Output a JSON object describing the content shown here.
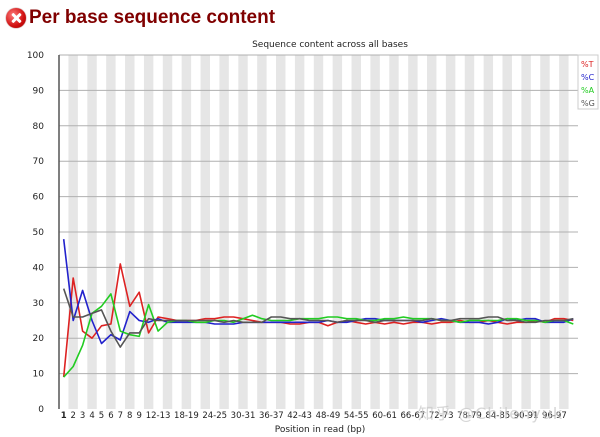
{
  "header": {
    "title": "Per base sequence content",
    "status_icon": "error-icon"
  },
  "watermark": "知乎 @Chilenyuk",
  "chart_data": {
    "type": "line",
    "title": "Sequence content across all bases",
    "xlabel": "Position in read (bp)",
    "ylabel": "",
    "ylim": [
      0,
      100
    ],
    "yticks": [
      0,
      10,
      20,
      30,
      40,
      50,
      60,
      70,
      80,
      90,
      100
    ],
    "grid": true,
    "legend_position": "top-right",
    "categories": [
      "1",
      "2",
      "3",
      "4",
      "5",
      "6",
      "7",
      "8",
      "9",
      "10-11",
      "12-13",
      "14-15",
      "16-17",
      "18-19",
      "20-21",
      "22-23",
      "24-25",
      "26-27",
      "28-29",
      "30-31",
      "32-33",
      "34-35",
      "36-37",
      "38-39",
      "40-41",
      "42-43",
      "44-45",
      "46-47",
      "48-49",
      "50-51",
      "52-53",
      "54-55",
      "56-57",
      "58-59",
      "60-61",
      "62-63",
      "64-65",
      "66-67",
      "68-69",
      "70-71",
      "72-73",
      "74-75",
      "76-77",
      "78-79",
      "80-81",
      "82-83",
      "84-85",
      "86-87",
      "88-89",
      "90-91",
      "92-93",
      "94-95",
      "96-97",
      "98-99",
      "100-101"
    ],
    "x_tick_labels": [
      "1",
      "2",
      "3",
      "4",
      "5",
      "6",
      "7",
      "8",
      "9",
      "12-13",
      "18-19",
      "24-25",
      "30-31",
      "36-37",
      "42-43",
      "48-49",
      "54-55",
      "60-61",
      "66-67",
      "72-73",
      "78-79",
      "84-85",
      "90-91",
      "96-97"
    ],
    "series": [
      {
        "name": "%T",
        "color": "#dd2222",
        "values": [
          9,
          37,
          22,
          20,
          23.5,
          24,
          41,
          29,
          33,
          21.5,
          26,
          25.5,
          25,
          25,
          25,
          25.5,
          25.5,
          26,
          26,
          25.5,
          25,
          24.5,
          24.5,
          24.5,
          24,
          24,
          24.5,
          24.5,
          23.5,
          24.5,
          25,
          24.5,
          24,
          24.5,
          24,
          24.5,
          24,
          24.5,
          24.5,
          24,
          24.5,
          24.5,
          25,
          24.5,
          24.5,
          25,
          24.5,
          24,
          24.5,
          24.5,
          25,
          24.5,
          25.5,
          25.5,
          25
        ]
      },
      {
        "name": "%C",
        "color": "#2222cc",
        "values": [
          48,
          25,
          33.5,
          25,
          18.5,
          21,
          19.5,
          27.5,
          25,
          24.5,
          25.5,
          24.5,
          24.5,
          24.5,
          24.5,
          24.5,
          24,
          24,
          24,
          24.5,
          24.5,
          24.5,
          24.5,
          24.5,
          24.5,
          24.5,
          24.5,
          24.5,
          25,
          24.5,
          24.5,
          25,
          25.5,
          25.5,
          25,
          25,
          25,
          25,
          24.5,
          25,
          25.5,
          25,
          24.5,
          24.5,
          24.5,
          24,
          24.5,
          25.5,
          25,
          25.5,
          25.5,
          24.5,
          24.5,
          24.5,
          25.5
        ]
      },
      {
        "name": "%A",
        "color": "#22cc22",
        "values": [
          9,
          12,
          18,
          27,
          29,
          32.5,
          22,
          21,
          20.5,
          29.5,
          22,
          24.5,
          25,
          25,
          24.5,
          24.5,
          25,
          25,
          24.5,
          25.5,
          26.5,
          25.5,
          25,
          25,
          25,
          25.5,
          25.5,
          25.5,
          26,
          26,
          25.5,
          25.5,
          25,
          25,
          25.5,
          25.5,
          26,
          25.5,
          25.5,
          25.5,
          25,
          25,
          24.5,
          25,
          25,
          25,
          25,
          25.5,
          25.5,
          25,
          25,
          24.5,
          25,
          25,
          24
        ]
      },
      {
        "name": "%G",
        "color": "#555555",
        "values": [
          34,
          26,
          26,
          27,
          28,
          22,
          17.5,
          21.5,
          21.5,
          25.5,
          25,
          25,
          25,
          25,
          25,
          25,
          25,
          24.5,
          25,
          24.5,
          24.5,
          24.5,
          26,
          26,
          25.5,
          25.5,
          25,
          25,
          25,
          24.5,
          25,
          25,
          25,
          24.5,
          25,
          25,
          25,
          25,
          25,
          25.5,
          25,
          25,
          25.5,
          25.5,
          25.5,
          26,
          26,
          25,
          25,
          24.5,
          24.5,
          25,
          25,
          25,
          25.5
        ]
      }
    ]
  }
}
